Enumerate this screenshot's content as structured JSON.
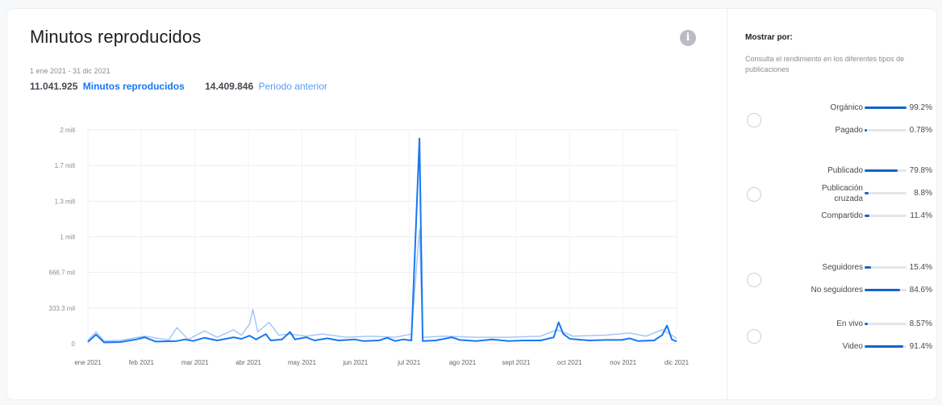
{
  "header": {
    "title": "Minutos reproducidos",
    "date_range": "1 ene 2021 - 31 dic 2021",
    "total_value": "11.041.925",
    "total_label": "Minutos reproducidos",
    "previous_value": "14.409.846",
    "previous_label": "Periodo anterior"
  },
  "colors": {
    "current": "#1877f2",
    "previous": "#8fb8f2",
    "bar": "#1464c8"
  },
  "chart_data": {
    "type": "line",
    "title": "Minutos reproducidos",
    "y_ticks": [
      "2 mill",
      "1.7 mill",
      "1.3 mill",
      "1 mill",
      "666.7 mil",
      "333.3 mil",
      "0"
    ],
    "x_ticks": [
      "ene 2021",
      "feb 2021",
      "mar 2021",
      "abr 2021",
      "may 2021",
      "jun 2021",
      "jul 2021",
      "ago 2021",
      "sept 2021",
      "oct 2021",
      "nov 2021",
      "dic 2021"
    ],
    "ylim": [
      0,
      2000000
    ],
    "grid": true,
    "series": [
      {
        "name": "Minutos reproducidos",
        "points": [
          [
            0,
            16000
          ],
          [
            5,
            85000
          ],
          [
            10,
            12000
          ],
          [
            20,
            15000
          ],
          [
            30,
            40000
          ],
          [
            35,
            60000
          ],
          [
            42,
            20000
          ],
          [
            55,
            25000
          ],
          [
            60,
            40000
          ],
          [
            65,
            25000
          ],
          [
            72,
            55000
          ],
          [
            80,
            30000
          ],
          [
            90,
            60000
          ],
          [
            95,
            45000
          ],
          [
            100,
            75000
          ],
          [
            104,
            40000
          ],
          [
            110,
            90000
          ],
          [
            113,
            30000
          ],
          [
            120,
            40000
          ],
          [
            125,
            110000
          ],
          [
            128,
            40000
          ],
          [
            135,
            60000
          ],
          [
            140,
            30000
          ],
          [
            148,
            50000
          ],
          [
            155,
            30000
          ],
          [
            160,
            35000
          ],
          [
            165,
            40000
          ],
          [
            170,
            25000
          ],
          [
            180,
            30000
          ],
          [
            185,
            55000
          ],
          [
            190,
            25000
          ],
          [
            195,
            40000
          ],
          [
            200,
            30000
          ],
          [
            205,
            1920000
          ],
          [
            207,
            25000
          ],
          [
            215,
            30000
          ],
          [
            225,
            60000
          ],
          [
            230,
            35000
          ],
          [
            240,
            25000
          ],
          [
            250,
            40000
          ],
          [
            260,
            25000
          ],
          [
            270,
            30000
          ],
          [
            280,
            30000
          ],
          [
            288,
            60000
          ],
          [
            291,
            200000
          ],
          [
            294,
            90000
          ],
          [
            298,
            45000
          ],
          [
            310,
            30000
          ],
          [
            320,
            35000
          ],
          [
            330,
            35000
          ],
          [
            335,
            50000
          ],
          [
            340,
            25000
          ],
          [
            350,
            30000
          ],
          [
            355,
            80000
          ],
          [
            358,
            170000
          ],
          [
            361,
            40000
          ],
          [
            364,
            20000
          ]
        ]
      },
      {
        "name": "Periodo anterior",
        "points": [
          [
            0,
            30000
          ],
          [
            5,
            110000
          ],
          [
            10,
            25000
          ],
          [
            20,
            30000
          ],
          [
            35,
            70000
          ],
          [
            50,
            35000
          ],
          [
            55,
            150000
          ],
          [
            62,
            40000
          ],
          [
            72,
            120000
          ],
          [
            80,
            60000
          ],
          [
            90,
            130000
          ],
          [
            95,
            80000
          ],
          [
            100,
            185000
          ],
          [
            102,
            320000
          ],
          [
            105,
            110000
          ],
          [
            112,
            200000
          ],
          [
            118,
            80000
          ],
          [
            125,
            90000
          ],
          [
            135,
            70000
          ],
          [
            145,
            90000
          ],
          [
            160,
            60000
          ],
          [
            175,
            70000
          ],
          [
            190,
            60000
          ],
          [
            200,
            90000
          ],
          [
            205,
            1070000
          ],
          [
            207,
            60000
          ],
          [
            220,
            70000
          ],
          [
            240,
            60000
          ],
          [
            260,
            60000
          ],
          [
            280,
            70000
          ],
          [
            290,
            130000
          ],
          [
            300,
            70000
          ],
          [
            320,
            80000
          ],
          [
            335,
            100000
          ],
          [
            345,
            70000
          ],
          [
            355,
            130000
          ],
          [
            360,
            90000
          ],
          [
            364,
            50000
          ]
        ]
      }
    ]
  },
  "sidebar": {
    "title": "Mostrar por:",
    "description": "Consulta el rendimiento en los diferentes tipos de publicaciones",
    "groups": [
      {
        "rows": [
          {
            "label": "Orgánico",
            "value": 0.992,
            "pct": "99.2%"
          },
          {
            "label": "Pagado",
            "value": 0.0078,
            "pct": "0.78%"
          }
        ]
      },
      {
        "rows": [
          {
            "label": "Publicado",
            "value": 0.798,
            "pct": "79.8%"
          },
          {
            "label": "Publicación cruzada",
            "value": 0.088,
            "pct": "8.8%"
          },
          {
            "label": "Compartido",
            "value": 0.114,
            "pct": "11.4%"
          }
        ]
      },
      {
        "rows": [
          {
            "label": "Seguidores",
            "value": 0.154,
            "pct": "15.4%"
          },
          {
            "label": "No seguidores",
            "value": 0.846,
            "pct": "84.6%"
          }
        ]
      },
      {
        "rows": [
          {
            "label": "En vivo",
            "value": 0.0857,
            "pct": "8.57%"
          },
          {
            "label": "Video",
            "value": 0.914,
            "pct": "91.4%"
          }
        ]
      }
    ]
  }
}
